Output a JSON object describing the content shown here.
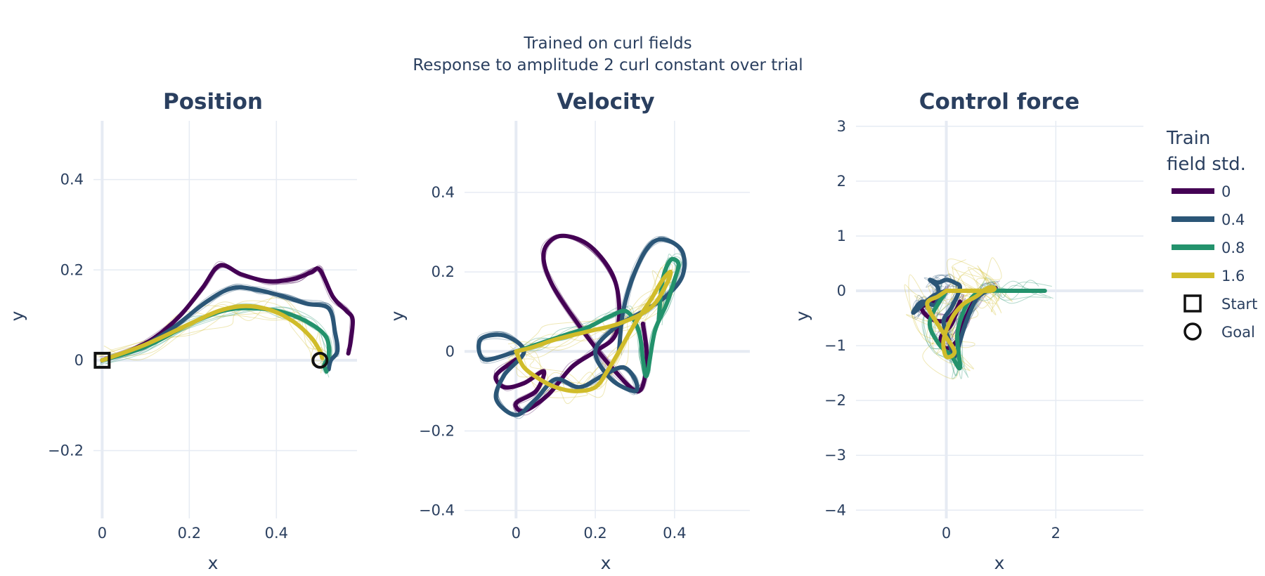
{
  "figure": {
    "title_line1": "Trained on curl fields",
    "title_line2": "Response to amplitude 2 curl constant over trial"
  },
  "legend": {
    "title_line1": "Train",
    "title_line2": "field std.",
    "entries": [
      {
        "label": "0",
        "color": "#440154"
      },
      {
        "label": "0.4",
        "color": "#2b5677"
      },
      {
        "label": "0.8",
        "color": "#23926c"
      },
      {
        "label": "1.6",
        "color": "#d0bc2a"
      }
    ],
    "markers": [
      {
        "label": "Start",
        "symbol": "square"
      },
      {
        "label": "Goal",
        "symbol": "circle"
      }
    ]
  },
  "chart_data": [
    {
      "type": "line",
      "title": "Position",
      "xlabel": "x",
      "ylabel": "y",
      "xlim": [
        -0.02,
        0.585
      ],
      "ylim": [
        -0.35,
        0.53
      ],
      "xticks": [
        0,
        0.2,
        0.4
      ],
      "xtick_labels": [
        "0",
        "0.2",
        "0.4"
      ],
      "yticks": [
        -0.2,
        0,
        0.2,
        0.4
      ],
      "ytick_labels": [
        "−0.2",
        "0",
        "0.2",
        "0.4"
      ],
      "grid": true,
      "start_marker": [
        0,
        0
      ],
      "goal_marker": [
        0.5,
        0
      ],
      "series": [
        {
          "name": "0",
          "color": "#440154",
          "x": [
            0,
            0.06,
            0.12,
            0.18,
            0.23,
            0.27,
            0.32,
            0.38,
            0.44,
            0.48,
            0.5,
            0.53,
            0.56,
            0.575,
            0.57,
            0.565
          ],
          "y": [
            0,
            0.02,
            0.05,
            0.1,
            0.16,
            0.21,
            0.19,
            0.175,
            0.18,
            0.195,
            0.2,
            0.14,
            0.11,
            0.09,
            0.04,
            0.015
          ]
        },
        {
          "name": "0.4",
          "color": "#2b5677",
          "x": [
            0,
            0.08,
            0.16,
            0.24,
            0.3,
            0.36,
            0.42,
            0.47,
            0.52,
            0.535,
            0.54,
            0.525,
            0.52
          ],
          "y": [
            0,
            0.025,
            0.07,
            0.13,
            0.16,
            0.155,
            0.14,
            0.125,
            0.115,
            0.06,
            0.02,
            0.0,
            -0.02
          ]
        },
        {
          "name": "0.8",
          "color": "#23926c",
          "x": [
            0,
            0.1,
            0.2,
            0.28,
            0.35,
            0.42,
            0.48,
            0.515,
            0.52,
            0.51,
            0.515
          ],
          "y": [
            0,
            0.03,
            0.08,
            0.11,
            0.115,
            0.105,
            0.08,
            0.05,
            0.01,
            -0.01,
            -0.025
          ]
        },
        {
          "name": "1.6",
          "color": "#d0bc2a",
          "x": [
            0,
            0.1,
            0.2,
            0.27,
            0.33,
            0.39,
            0.44,
            0.48,
            0.5,
            0.505
          ],
          "y": [
            0,
            0.035,
            0.08,
            0.11,
            0.12,
            0.11,
            0.085,
            0.05,
            0.02,
            0.005
          ]
        }
      ]
    },
    {
      "type": "line",
      "title": "Velocity",
      "xlabel": "x",
      "ylabel": "y",
      "xlim": [
        -0.13,
        0.59
      ],
      "ylim": [
        -0.42,
        0.58
      ],
      "xticks": [
        0,
        0.2,
        0.4
      ],
      "xtick_labels": [
        "0",
        "0.2",
        "0.4"
      ],
      "yticks": [
        -0.4,
        -0.2,
        0,
        0.2,
        0.4
      ],
      "ytick_labels": [
        "−0.4",
        "−0.2",
        "0",
        "0.2",
        "0.4"
      ],
      "grid": true,
      "series": [
        {
          "name": "0",
          "color": "#440154",
          "x": [
            0,
            -0.05,
            -0.03,
            0.02,
            0.07,
            0.05,
            0.0,
            0.02,
            0.08,
            0.14,
            0.2,
            0.25,
            0.26,
            0.24,
            0.18,
            0.11,
            0.07,
            0.09,
            0.17,
            0.25,
            0.31,
            0.33,
            0.32
          ],
          "y": [
            -0.02,
            -0.06,
            -0.09,
            -0.08,
            -0.05,
            -0.1,
            -0.13,
            -0.15,
            -0.11,
            -0.04,
            0.0,
            0.04,
            0.12,
            0.2,
            0.27,
            0.29,
            0.25,
            0.17,
            0.05,
            -0.05,
            -0.1,
            -0.02,
            0.07
          ]
        },
        {
          "name": "0.4",
          "color": "#2b5677",
          "x": [
            0,
            -0.08,
            -0.09,
            -0.03,
            0.02,
            -0.03,
            -0.05,
            0.0,
            0.05,
            0.1,
            0.16,
            0.22,
            0.27,
            0.3,
            0.3,
            0.24,
            0.2,
            0.25,
            0.32,
            0.38,
            0.42,
            0.42,
            0.38,
            0.34,
            0.3,
            0.27,
            0.26
          ],
          "y": [
            0,
            -0.02,
            0.03,
            0.04,
            0.0,
            -0.06,
            -0.12,
            -0.16,
            -0.12,
            -0.07,
            -0.09,
            -0.06,
            -0.04,
            -0.07,
            -0.1,
            -0.07,
            0.0,
            0.06,
            0.1,
            0.14,
            0.19,
            0.25,
            0.28,
            0.27,
            0.2,
            0.1,
            0.0
          ]
        },
        {
          "name": "0.8",
          "color": "#23926c",
          "x": [
            0,
            0.06,
            0.12,
            0.18,
            0.24,
            0.28,
            0.31,
            0.32,
            0.33,
            0.35,
            0.38,
            0.4,
            0.41,
            0.39,
            0.37,
            0.36
          ],
          "y": [
            0,
            0.02,
            0.04,
            0.06,
            0.09,
            0.1,
            0.05,
            -0.02,
            -0.06,
            0.05,
            0.12,
            0.18,
            0.22,
            0.23,
            0.18,
            0.08
          ]
        },
        {
          "name": "1.6",
          "color": "#d0bc2a",
          "x": [
            0,
            0.02,
            0.06,
            0.1,
            0.15,
            0.2,
            0.23,
            0.26,
            0.3,
            0.34,
            0.37,
            0.39,
            0.38,
            0.34,
            0.26,
            0.18,
            0.1,
            0.04,
            0.0
          ],
          "y": [
            0,
            -0.04,
            -0.07,
            -0.09,
            -0.1,
            -0.09,
            -0.05,
            0.0,
            0.07,
            0.13,
            0.18,
            0.2,
            0.17,
            0.11,
            0.07,
            0.05,
            0.03,
            0.01,
            0.0
          ]
        }
      ]
    },
    {
      "type": "line",
      "title": "Control force",
      "xlabel": "x",
      "ylabel": "y",
      "xlim": [
        -1.65,
        3.6
      ],
      "ylim": [
        -4.15,
        3.1
      ],
      "xticks": [
        0,
        2
      ],
      "xtick_labels": [
        "0",
        "2"
      ],
      "yticks": [
        -4,
        -3,
        -2,
        -1,
        0,
        1,
        2,
        3
      ],
      "ytick_labels": [
        "−4",
        "−3",
        "−2",
        "−1",
        "0",
        "1",
        "2",
        "3"
      ],
      "grid": true,
      "series": [
        {
          "name": "0",
          "color": "#440154",
          "x": [
            0,
            -0.2,
            -0.45,
            -0.3,
            -0.05,
            0.15,
            0.25,
            0.1,
            -0.1,
            0.0,
            0.2,
            0.35,
            0.5,
            0.7,
            0.9
          ],
          "y": [
            0,
            -0.2,
            -0.3,
            -0.5,
            -0.55,
            -0.4,
            -0.2,
            -0.6,
            -0.85,
            -1.05,
            -0.9,
            -0.5,
            -0.2,
            0.0,
            0.05
          ]
        },
        {
          "name": "0.4",
          "color": "#2b5677",
          "x": [
            0,
            -0.25,
            -0.6,
            -0.45,
            -0.2,
            -0.15,
            -0.3,
            -0.15,
            0.0,
            0.15,
            0.25,
            0.1,
            -0.05,
            0.05,
            0.15,
            0.35,
            0.55,
            0.75,
            0.9
          ],
          "y": [
            0,
            -0.1,
            -0.4,
            -0.2,
            -0.25,
            0.05,
            0.2,
            0.15,
            0.2,
            0.15,
            0.05,
            -0.3,
            -0.55,
            -0.9,
            -1.2,
            -0.6,
            -0.15,
            0.0,
            0.03
          ]
        },
        {
          "name": "0.8",
          "color": "#23926c",
          "x": [
            0,
            -0.3,
            -0.15,
            0.1,
            0.25,
            0.2,
            0.35,
            0.55,
            0.8,
            1.1,
            1.4,
            1.8
          ],
          "y": [
            0,
            -0.55,
            -0.95,
            -1.2,
            -1.4,
            -0.8,
            -0.3,
            -0.05,
            0.0,
            0.0,
            0.0,
            0.0
          ]
        },
        {
          "name": "1.6",
          "color": "#d0bc2a",
          "x": [
            0,
            -0.15,
            -0.35,
            -0.1,
            0.15,
            0.0,
            -0.05,
            0.1,
            0.3,
            0.55,
            0.75,
            0.88,
            0.8,
            0.4,
            0.0
          ],
          "y": [
            0,
            -0.1,
            -0.25,
            -0.7,
            -1.1,
            -1.2,
            -0.9,
            -0.5,
            -0.25,
            -0.1,
            0.05,
            0.05,
            0.0,
            0.0,
            0.0
          ]
        }
      ]
    }
  ]
}
